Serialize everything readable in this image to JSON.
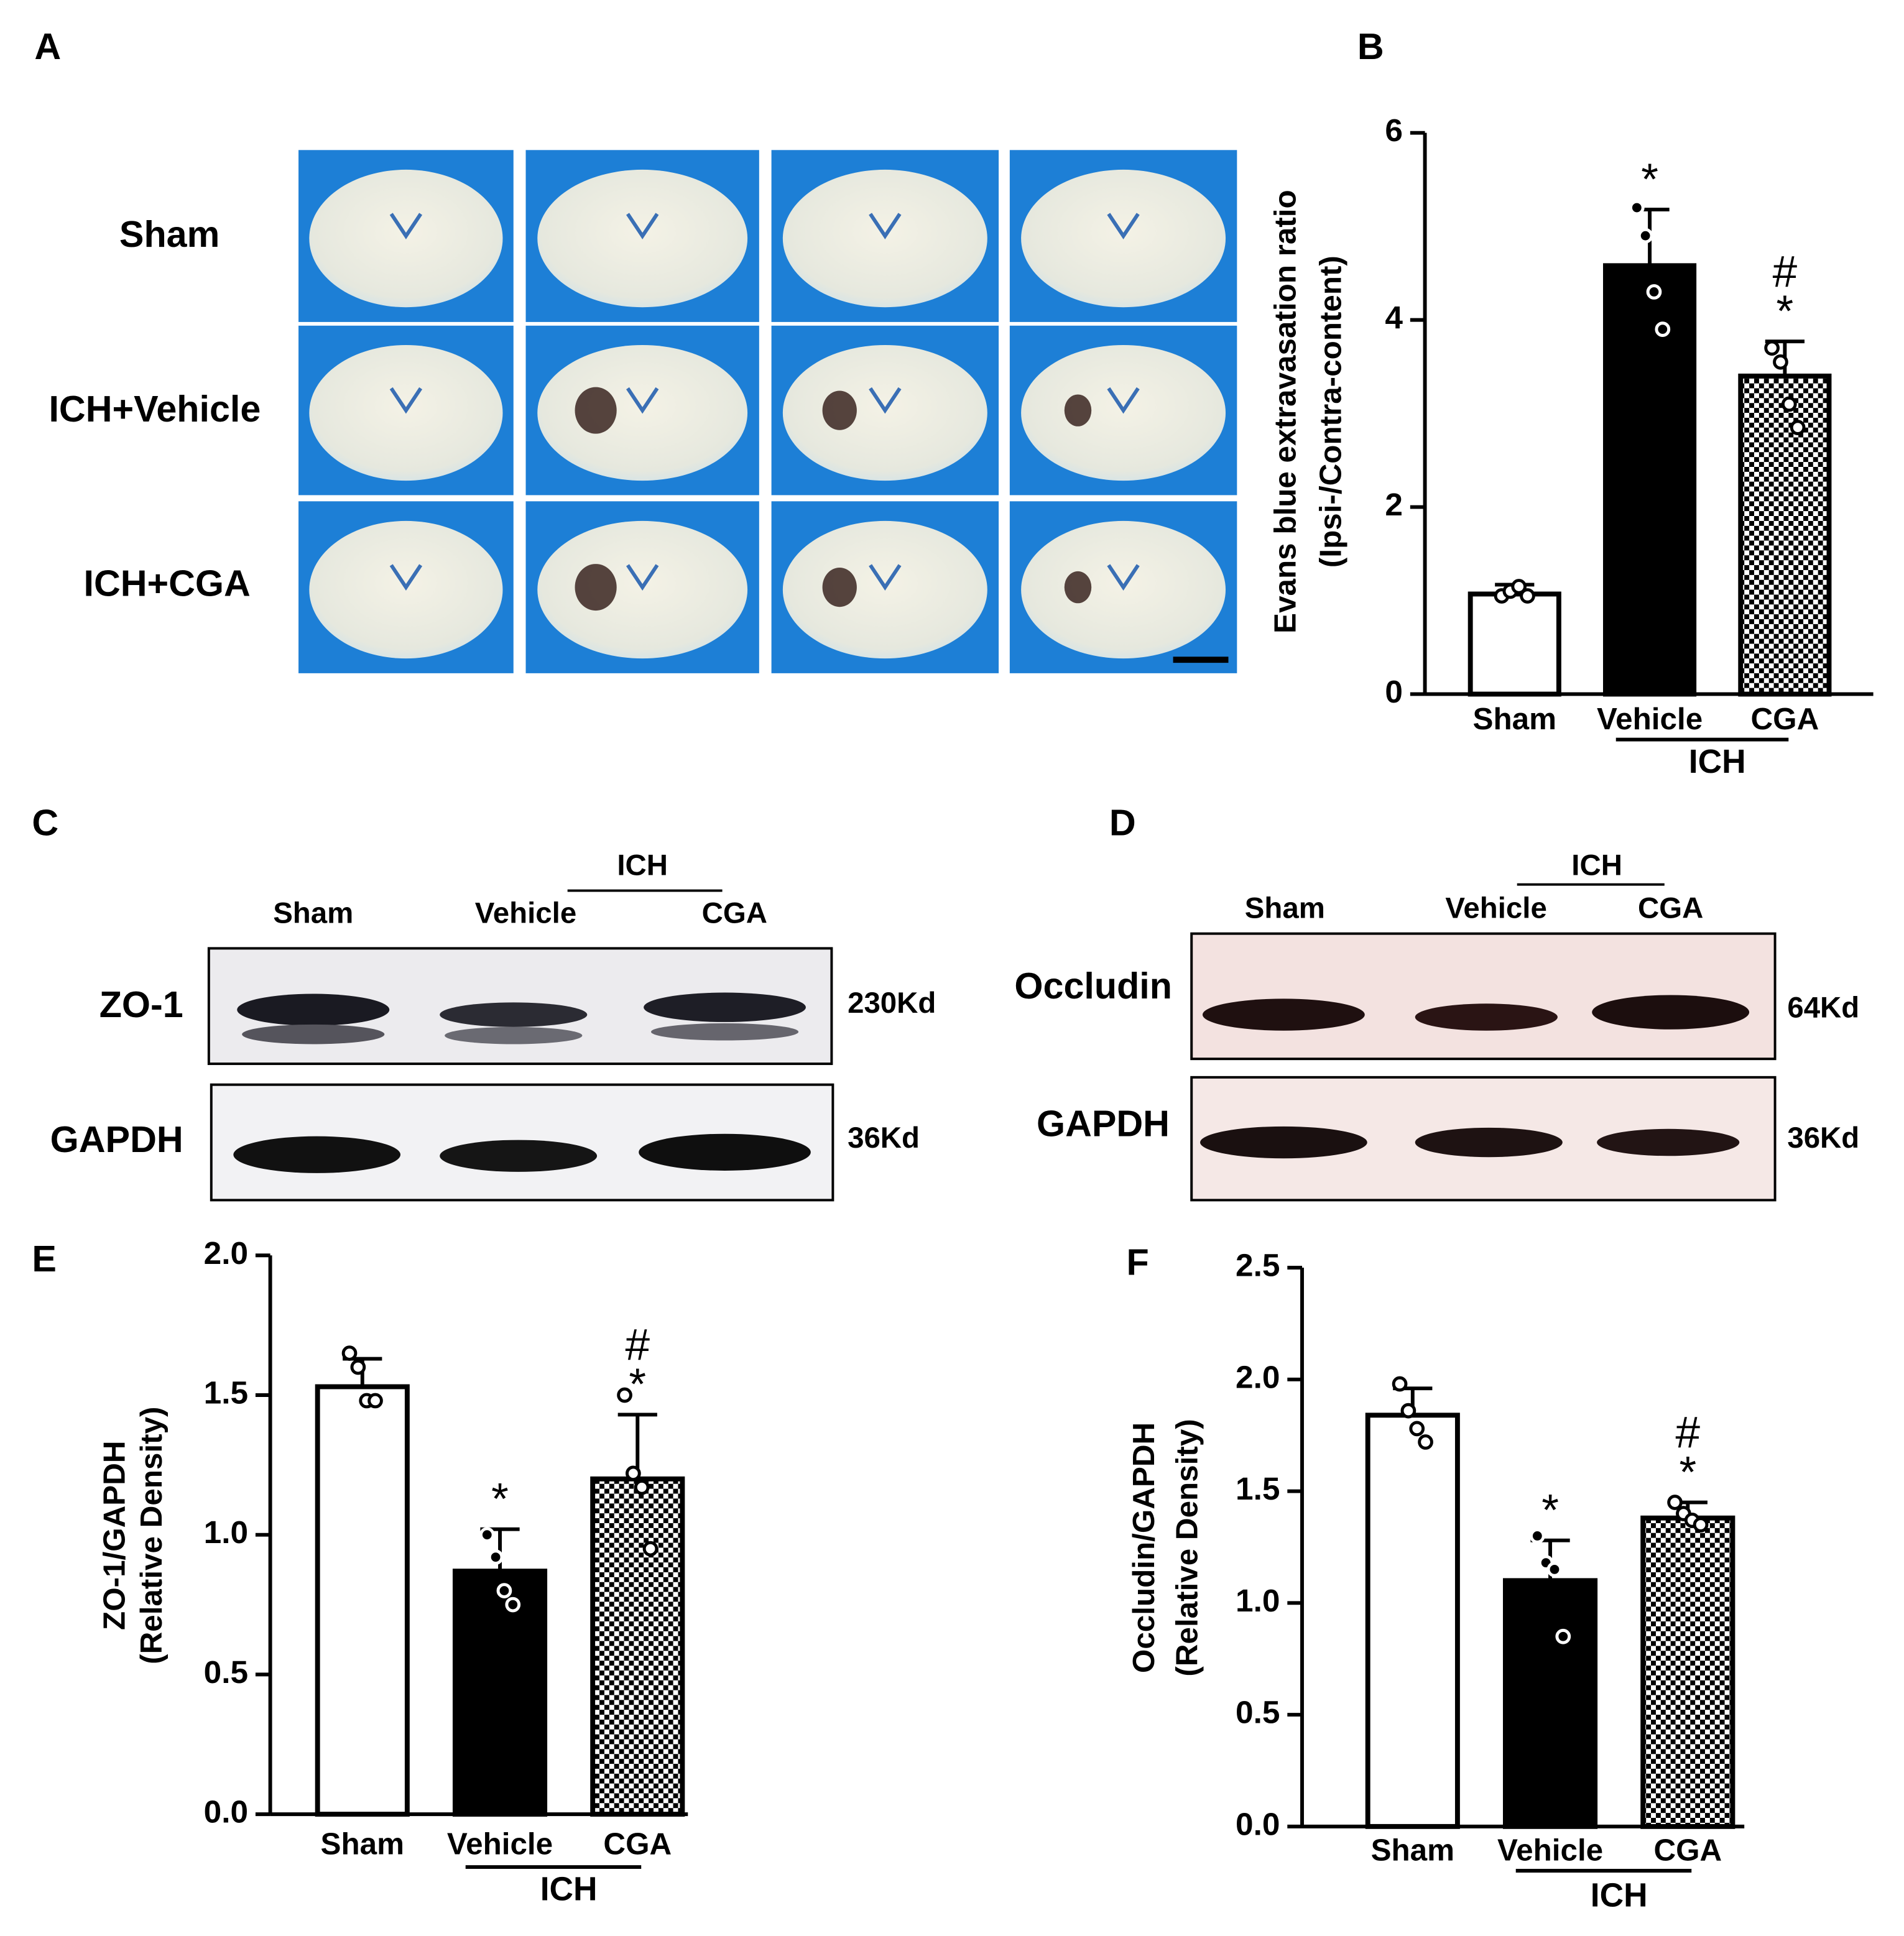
{
  "figure": {
    "panel_labels": [
      "A",
      "B",
      "C",
      "D",
      "E",
      "F"
    ],
    "panel_a": {
      "rows": [
        "Sham",
        "ICH+Vehicle",
        "ICH+CGA"
      ]
    },
    "panel_c": {
      "lanes": [
        "Sham",
        "Vehicle",
        "CGA"
      ],
      "group": "ICH",
      "blots": [
        {
          "name": "ZO-1",
          "size": "230Kd"
        },
        {
          "name": "GAPDH",
          "size": "36Kd"
        }
      ]
    },
    "panel_d": {
      "lanes": [
        "Sham",
        "Vehicle",
        "CGA"
      ],
      "group": "ICH",
      "blots": [
        {
          "name": "Occludin",
          "size": "64Kd"
        },
        {
          "name": "GAPDH",
          "size": "36Kd"
        }
      ]
    }
  },
  "chart_data": [
    {
      "type": "bar",
      "y_label": [
        "Evans blue extravasation ratio",
        "(Ipsi-/Contra-content)"
      ],
      "categories": [
        "Sham",
        "Vehicle",
        "CGA"
      ],
      "group_label": "ICH",
      "bar_styles": [
        "open",
        "solid",
        "checkered"
      ],
      "values": [
        1.07,
        4.58,
        3.4
      ],
      "errors": [
        0.1,
        0.6,
        0.37
      ],
      "points": [
        [
          1.05,
          1.1,
          1.15,
          1.05
        ],
        [
          5.2,
          4.9,
          4.3,
          3.9
        ],
        [
          3.7,
          3.55,
          3.1,
          2.85
        ]
      ],
      "annotations": [
        [],
        [
          "*"
        ],
        [
          "*",
          "#"
        ]
      ],
      "ylim": [
        0,
        6
      ],
      "yticks": [
        0,
        2,
        4,
        6
      ]
    },
    {
      "type": "bar",
      "y_label": [
        "ZO-1/GAPDH",
        "(Relative Density)"
      ],
      "categories": [
        "Sham",
        "Vehicle",
        "CGA"
      ],
      "group_label": "ICH",
      "bar_styles": [
        "open",
        "solid",
        "checkered"
      ],
      "values": [
        1.53,
        0.87,
        1.2
      ],
      "errors": [
        0.1,
        0.15,
        0.23
      ],
      "points": [
        [
          1.65,
          1.6,
          1.48,
          1.48
        ],
        [
          1.0,
          0.92,
          0.8,
          0.75
        ],
        [
          1.5,
          1.22,
          1.17,
          0.95
        ]
      ],
      "annotations": [
        [],
        [
          "*"
        ],
        [
          "*",
          "#"
        ]
      ],
      "ylim": [
        0,
        2
      ],
      "yticks": [
        {
          "value": 0,
          "label": "0.0"
        },
        0.5,
        {
          "value": 1,
          "label": "1.0"
        },
        1.5,
        {
          "value": 2,
          "label": "2.0"
        }
      ]
    },
    {
      "type": "bar",
      "y_label": [
        "Occludin/GAPDH",
        "(Relative Density)"
      ],
      "categories": [
        "Sham",
        "Vehicle",
        "CGA"
      ],
      "group_label": "ICH",
      "bar_styles": [
        "open",
        "solid",
        "checkered"
      ],
      "values": [
        1.84,
        1.1,
        1.38
      ],
      "errors": [
        0.12,
        0.18,
        0.07
      ],
      "points": [
        [
          1.98,
          1.86,
          1.78,
          1.72
        ],
        [
          1.3,
          1.18,
          1.15,
          0.85
        ],
        [
          1.45,
          1.4,
          1.37,
          1.35
        ]
      ],
      "annotations": [
        [],
        [
          "*"
        ],
        [
          "*",
          "#"
        ]
      ],
      "ylim": [
        0,
        2.5
      ],
      "yticks": [
        {
          "value": 0,
          "label": "0.0"
        },
        0.5,
        {
          "value": 1,
          "label": "1.0"
        },
        1.5,
        {
          "value": 2,
          "label": "2.0"
        },
        2.5
      ]
    }
  ]
}
